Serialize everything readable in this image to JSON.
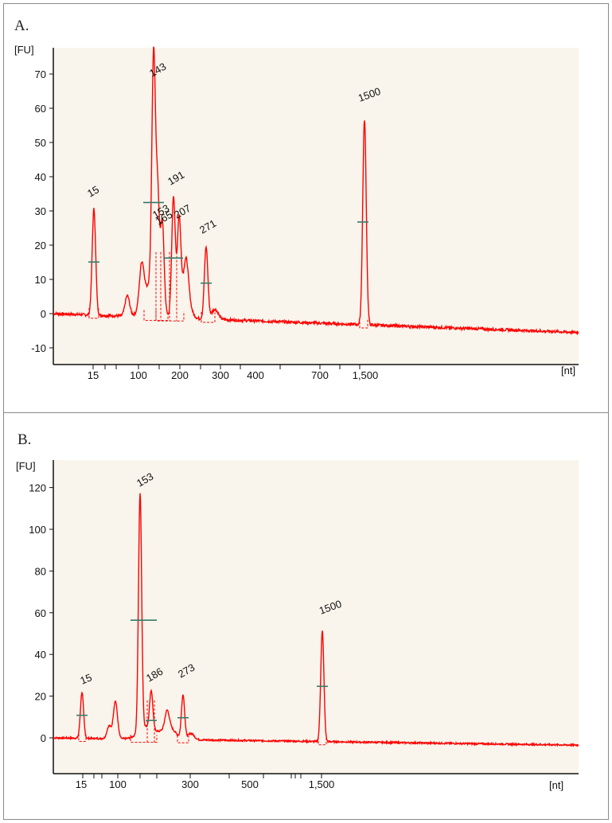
{
  "panels": [
    {
      "label": "A."
    },
    {
      "label": "B."
    }
  ],
  "colors": {
    "trace": "#ff0000",
    "marker": "#2e7d6b",
    "plot_bg": "#faf5ec",
    "axis": "#111111"
  },
  "chart_data": [
    {
      "type": "line",
      "panel": "A.",
      "y_unit": "[FU]",
      "x_unit": "[nt]",
      "ylim": [
        -13,
        76
      ],
      "y_ticks": [
        -10,
        0,
        10,
        20,
        30,
        40,
        50,
        60,
        70
      ],
      "x_tick_labels": [
        "15",
        "100",
        "200",
        "300",
        "400",
        "700",
        "1,500"
      ],
      "baseline": {
        "start": 0,
        "end": -5.5
      },
      "peaks": [
        {
          "label": "15",
          "height": 31
        },
        {
          "label": "143",
          "height": 67
        },
        {
          "label": "153",
          "height": 30
        },
        {
          "label": "165",
          "height": 25
        },
        {
          "label": "191",
          "height": 35
        },
        {
          "label": "207",
          "height": 26
        },
        {
          "label": "271",
          "height": 21
        },
        {
          "label": "1500",
          "height": 60
        }
      ],
      "minor_peaks": [
        {
          "height": 6
        },
        {
          "height": 12
        },
        {
          "height": 10
        }
      ]
    },
    {
      "type": "line",
      "panel": "B.",
      "y_unit": "[FU]",
      "x_unit": "[nt]",
      "ylim": [
        -18,
        128
      ],
      "y_ticks": [
        0,
        20,
        40,
        60,
        80,
        100,
        120
      ],
      "x_tick_labels": [
        "15",
        "100",
        "300",
        "500",
        "1,500"
      ],
      "baseline": {
        "start": 0,
        "end": -3.5
      },
      "peaks": [
        {
          "label": "15",
          "height": 22
        },
        {
          "label": "153",
          "height": 114
        },
        {
          "label": "186",
          "height": 18
        },
        {
          "label": "273",
          "height": 21
        },
        {
          "label": "1500",
          "height": 53
        }
      ],
      "minor_peaks": [
        {
          "height": 18
        },
        {
          "height": 6
        },
        {
          "height": 8
        }
      ]
    }
  ]
}
